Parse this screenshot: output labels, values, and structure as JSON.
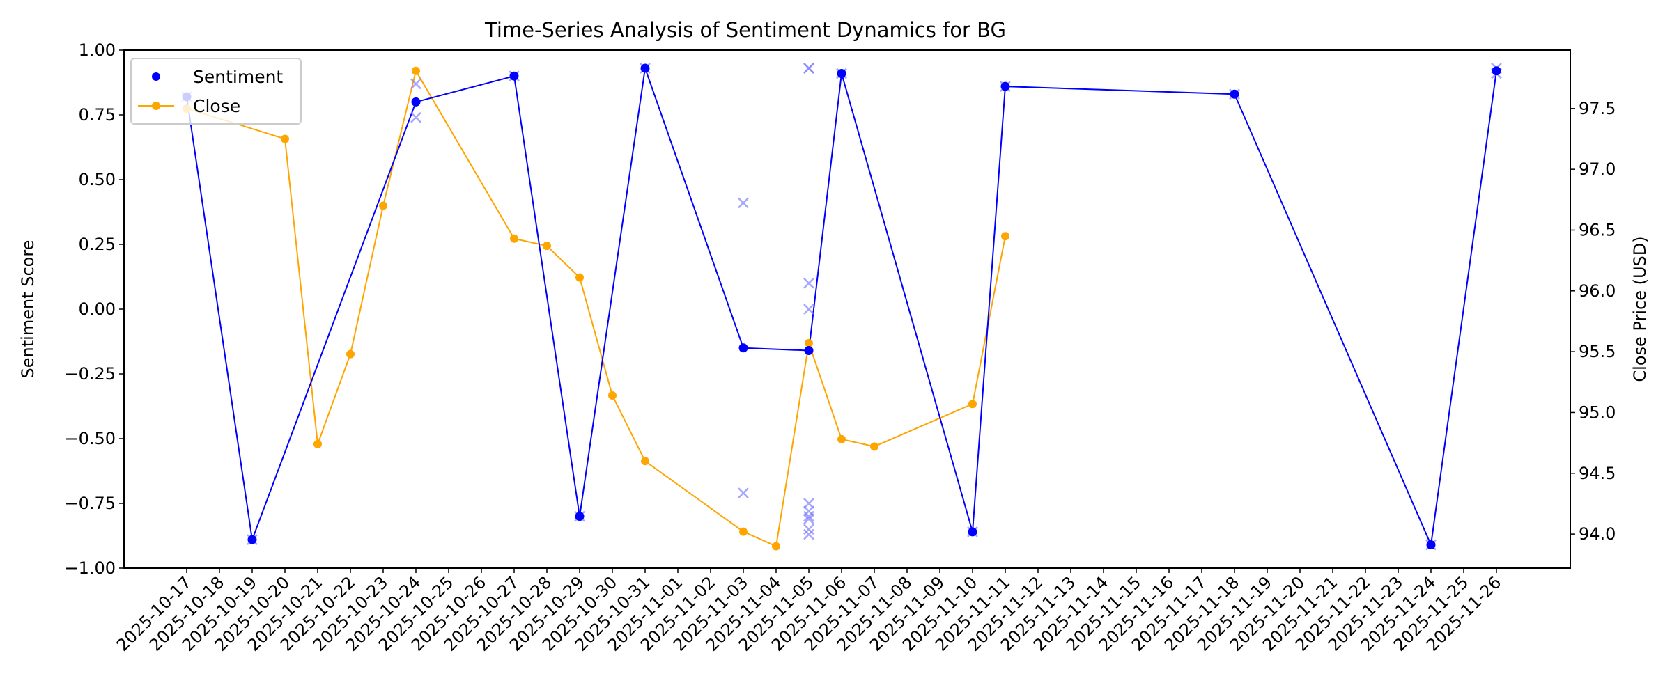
{
  "chart_data": {
    "type": "line",
    "title": "Time-Series Analysis of Sentiment Dynamics for BG",
    "xlabel": "",
    "ylabel": "Sentiment Score",
    "y2label": "Close Price (USD)",
    "ylim": [
      -1.0,
      1.0
    ],
    "y2lim": [
      93.72,
      97.98
    ],
    "x_tick_labels": [
      "2025-10-17",
      "2025-10-18",
      "2025-10-19",
      "2025-10-20",
      "2025-10-21",
      "2025-10-22",
      "2025-10-23",
      "2025-10-24",
      "2025-10-25",
      "2025-10-26",
      "2025-10-27",
      "2025-10-28",
      "2025-10-29",
      "2025-10-30",
      "2025-10-31",
      "2025-11-01",
      "2025-11-02",
      "2025-11-03",
      "2025-11-04",
      "2025-11-05",
      "2025-11-06",
      "2025-11-07",
      "2025-11-08",
      "2025-11-09",
      "2025-11-10",
      "2025-11-11",
      "2025-11-12",
      "2025-11-13",
      "2025-11-14",
      "2025-11-15",
      "2025-11-16",
      "2025-11-17",
      "2025-11-18",
      "2025-11-19",
      "2025-11-20",
      "2025-11-21",
      "2025-11-22",
      "2025-11-23",
      "2025-11-24",
      "2025-11-25",
      "2025-11-26"
    ],
    "y_tick_labels": [
      "−1.00",
      "−0.75",
      "−0.50",
      "−0.25",
      "0.00",
      "0.25",
      "0.50",
      "0.75",
      "1.00"
    ],
    "y_tick_values": [
      -1.0,
      -0.75,
      -0.5,
      -0.25,
      0.0,
      0.25,
      0.5,
      0.75,
      1.0
    ],
    "y2_tick_labels": [
      "94.0",
      "94.5",
      "95.0",
      "95.5",
      "96.0",
      "96.5",
      "97.0",
      "97.5"
    ],
    "y2_tick_values": [
      94.0,
      94.5,
      95.0,
      95.5,
      96.0,
      96.5,
      97.0,
      97.5
    ],
    "legend": {
      "position": "top-left",
      "entries": [
        "Sentiment",
        "Close"
      ]
    },
    "grid": false,
    "colors": {
      "sentiment": "#0000ff",
      "close": "#ffa500",
      "raw": "#8080ff"
    },
    "series": [
      {
        "name": "Sentiment",
        "axis": "left",
        "x": [
          "2025-10-17",
          "2025-10-19",
          "2025-10-24",
          "2025-10-27",
          "2025-10-29",
          "2025-10-31",
          "2025-11-03",
          "2025-11-05",
          "2025-11-06",
          "2025-11-10",
          "2025-11-11",
          "2025-11-18",
          "2025-11-24",
          "2025-11-26"
        ],
        "values": [
          0.82,
          -0.89,
          0.8,
          0.9,
          -0.8,
          0.93,
          -0.15,
          -0.16,
          0.91,
          -0.86,
          0.86,
          0.83,
          -0.91,
          0.92
        ]
      },
      {
        "name": "Close",
        "axis": "right",
        "x": [
          "2025-10-17",
          "2025-10-20",
          "2025-10-21",
          "2025-10-22",
          "2025-10-23",
          "2025-10-24",
          "2025-10-27",
          "2025-10-28",
          "2025-10-29",
          "2025-10-30",
          "2025-10-31",
          "2025-11-03",
          "2025-11-04",
          "2025-11-05",
          "2025-11-06",
          "2025-11-07",
          "2025-11-10",
          "2025-11-11"
        ],
        "values": [
          97.5,
          97.25,
          94.74,
          95.48,
          96.7,
          97.81,
          96.43,
          96.37,
          96.11,
          95.14,
          94.6,
          94.02,
          93.9,
          95.57,
          94.78,
          94.72,
          95.07,
          96.45
        ]
      },
      {
        "axis": "left",
        "marker": "x",
        "x": [
          "2025-10-17",
          "2025-10-19",
          "2025-10-24",
          "2025-10-24",
          "2025-10-27",
          "2025-10-29",
          "2025-10-31",
          "2025-11-03",
          "2025-11-03",
          "2025-11-05",
          "2025-11-05",
          "2025-11-05",
          "2025-11-05",
          "2025-11-05",
          "2025-11-05",
          "2025-11-05",
          "2025-11-05",
          "2025-11-05",
          "2025-11-05",
          "2025-11-06",
          "2025-11-10",
          "2025-11-11",
          "2025-11-18",
          "2025-11-24",
          "2025-11-26",
          "2025-11-26"
        ],
        "values": [
          0.82,
          -0.89,
          0.87,
          0.74,
          0.9,
          -0.8,
          0.93,
          0.41,
          -0.71,
          0.93,
          0.93,
          0.1,
          0.0,
          -0.75,
          -0.78,
          -0.8,
          -0.81,
          -0.85,
          -0.87,
          0.91,
          -0.86,
          0.86,
          0.83,
          -0.91,
          0.93,
          0.91
        ]
      }
    ]
  }
}
